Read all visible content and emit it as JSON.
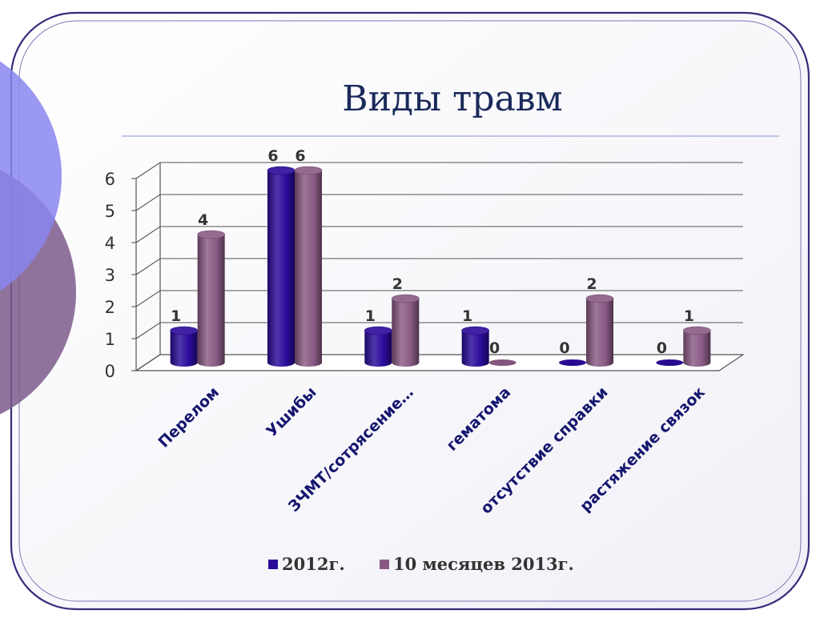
{
  "slide": {
    "title": "Виды травм"
  },
  "chart_data": {
    "type": "bar",
    "categories": [
      "Перелом",
      "Ушибы",
      "ЗЧМТ/сотрясение…",
      "гематома",
      "отсутствие справки",
      "растяжение связок"
    ],
    "series": [
      {
        "name": "2012г.",
        "values": [
          1,
          6,
          1,
          1,
          0,
          0
        ],
        "color": "#2a0a9a"
      },
      {
        "name": "10 месяцев 2013г.",
        "values": [
          4,
          6,
          2,
          0,
          2,
          1
        ],
        "color": "#8a5a85"
      }
    ],
    "yticks": [
      0,
      1,
      2,
      3,
      4,
      5,
      6
    ],
    "ylim": [
      0,
      6
    ],
    "grid": true,
    "legend_position": "bottom",
    "data_labels": true,
    "style": "3d-cylinder"
  }
}
